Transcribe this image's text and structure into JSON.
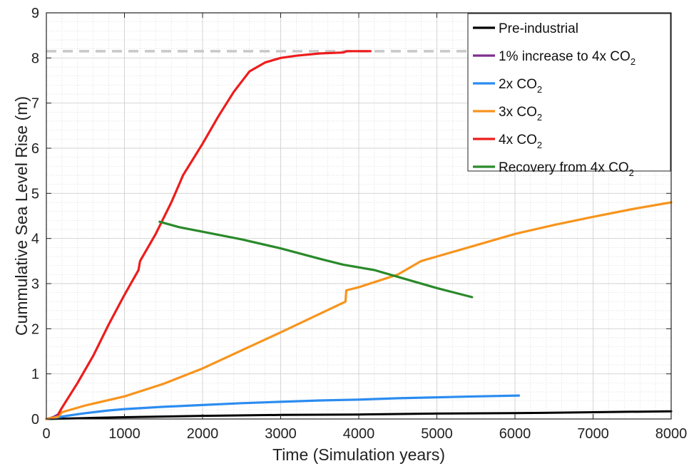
{
  "chart_data": {
    "type": "line",
    "title": "",
    "xlabel": "Time (Simulation years)",
    "ylabel": "Cummulative Sea Level Rise (m)",
    "xlim": [
      0,
      8000
    ],
    "ylim": [
      0,
      9
    ],
    "xticks": [
      0,
      1000,
      2000,
      3000,
      4000,
      5000,
      6000,
      7000,
      8000
    ],
    "yticks": [
      0,
      1,
      2,
      3,
      4,
      5,
      6,
      7,
      8,
      9
    ],
    "grid": true,
    "minor_grid": true,
    "legend_position": "top-right",
    "reference_line": {
      "y": 8.15,
      "style": "dashed",
      "color": "#c8c8c8"
    },
    "series": [
      {
        "name": "Pre-industrial",
        "sub": "",
        "color": "#000000",
        "x": [
          0,
          500,
          1000,
          2000,
          3000,
          4000,
          5000,
          6000,
          7000,
          8000
        ],
        "y": [
          0,
          0.02,
          0.04,
          0.07,
          0.09,
          0.1,
          0.12,
          0.13,
          0.15,
          0.17
        ]
      },
      {
        "name": "1% increase to 4x CO",
        "sub": "2",
        "color": "#7e2f8e",
        "x": [
          0,
          50,
          100,
          150
        ],
        "y": [
          0,
          0.02,
          0.05,
          0.1
        ]
      },
      {
        "name": "2x CO",
        "sub": "2",
        "color": "#2b8cf0",
        "x": [
          0,
          150,
          300,
          500,
          800,
          1000,
          1500,
          2000,
          2500,
          3000,
          3500,
          4000,
          4500,
          5000,
          5500,
          6050
        ],
        "y": [
          0,
          0.04,
          0.08,
          0.13,
          0.19,
          0.22,
          0.27,
          0.31,
          0.35,
          0.38,
          0.41,
          0.43,
          0.46,
          0.48,
          0.5,
          0.52
        ]
      },
      {
        "name": "3x CO",
        "sub": "2",
        "color": "#f7941d",
        "x": [
          0,
          150,
          200,
          500,
          1000,
          1500,
          2000,
          2500,
          3000,
          3500,
          3830,
          3840,
          4000,
          4500,
          4800,
          5000,
          5500,
          6000,
          6500,
          7000,
          7500,
          8000
        ],
        "y": [
          0,
          0.05,
          0.15,
          0.3,
          0.5,
          0.78,
          1.12,
          1.52,
          1.92,
          2.33,
          2.6,
          2.85,
          2.92,
          3.2,
          3.5,
          3.6,
          3.85,
          4.1,
          4.3,
          4.48,
          4.65,
          4.8
        ]
      },
      {
        "name": "4x CO",
        "sub": "2",
        "color": "#ee1c1c",
        "x": [
          150,
          200,
          400,
          600,
          800,
          1000,
          1180,
          1200,
          1400,
          1600,
          1700,
          1750,
          2000,
          2200,
          2400,
          2600,
          2800,
          3000,
          3200,
          3500,
          3800,
          3850,
          4150
        ],
        "y": [
          0.1,
          0.25,
          0.8,
          1.4,
          2.1,
          2.75,
          3.3,
          3.5,
          4.1,
          4.8,
          5.2,
          5.4,
          6.1,
          6.7,
          7.25,
          7.7,
          7.9,
          8.0,
          8.05,
          8.1,
          8.12,
          8.15,
          8.15
        ]
      },
      {
        "name": "Recovery from 4x CO",
        "sub": "2",
        "color": "#2a8a2a",
        "x": [
          1450,
          1700,
          2000,
          2500,
          3000,
          3500,
          3800,
          4200,
          4600,
          5000,
          5450
        ],
        "y": [
          4.37,
          4.25,
          4.15,
          3.98,
          3.78,
          3.55,
          3.42,
          3.3,
          3.1,
          2.9,
          2.7
        ]
      }
    ]
  }
}
